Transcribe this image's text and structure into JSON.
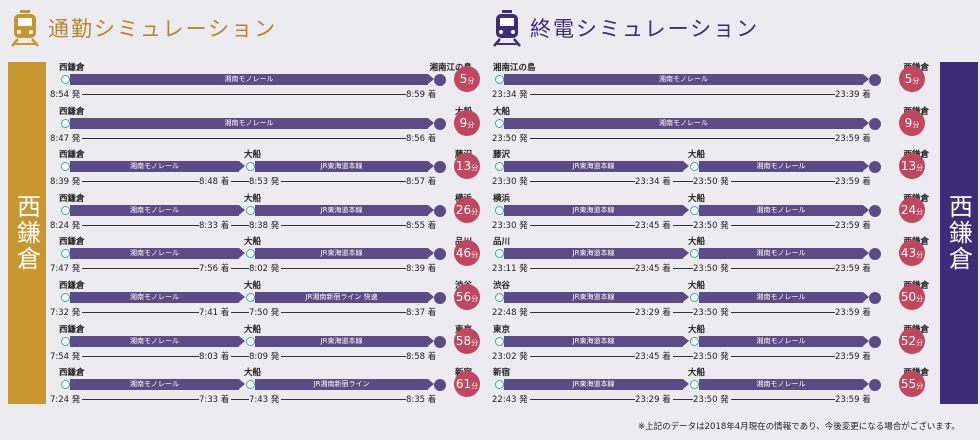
{
  "commute": {
    "title": "通勤シミュレーション",
    "side_label": "西鎌倉",
    "routes": [
      {
        "stations": [
          "西鎌倉",
          "湘南江の島"
        ],
        "lines": [
          "湘南モノレール"
        ],
        "dep": "8:54 発",
        "transfer": [],
        "arr": "8:59 着",
        "minutes": "5",
        "unit": "分"
      },
      {
        "stations": [
          "西鎌倉",
          "大船"
        ],
        "lines": [
          "湘南モノレール"
        ],
        "dep": "8:47 発",
        "transfer": [],
        "arr": "8:56 着",
        "minutes": "9",
        "unit": "分"
      },
      {
        "stations": [
          "西鎌倉",
          "大船",
          "藤沢"
        ],
        "lines": [
          "湘南モノレール",
          "JR東海道本線"
        ],
        "dep": "8:39 発",
        "transfer": [
          "8:48 着",
          "8:53 発"
        ],
        "arr": "8:57 着",
        "minutes": "13",
        "unit": "分"
      },
      {
        "stations": [
          "西鎌倉",
          "大船",
          "横浜"
        ],
        "lines": [
          "湘南モノレール",
          "JR東海道本線"
        ],
        "dep": "8:24 発",
        "transfer": [
          "8:33 着",
          "8:38 発"
        ],
        "arr": "8:55 着",
        "minutes": "26",
        "unit": "分"
      },
      {
        "stations": [
          "西鎌倉",
          "大船",
          "品川"
        ],
        "lines": [
          "湘南モノレール",
          "JR東海道本線"
        ],
        "dep": "7:47 発",
        "transfer": [
          "7:56 着",
          "8:02 発"
        ],
        "arr": "8:39 着",
        "minutes": "46",
        "unit": "分"
      },
      {
        "stations": [
          "西鎌倉",
          "大船",
          "渋谷"
        ],
        "lines": [
          "湘南モノレール",
          "JR湘南新宿ライン 快速"
        ],
        "dep": "7:32 発",
        "transfer": [
          "7:41 着",
          "7:50 発"
        ],
        "arr": "8:37 着",
        "minutes": "56",
        "unit": "分"
      },
      {
        "stations": [
          "西鎌倉",
          "大船",
          "東京"
        ],
        "lines": [
          "湘南モノレール",
          "JR東海道本線"
        ],
        "dep": "7:54 発",
        "transfer": [
          "8:03 着",
          "8:09 発"
        ],
        "arr": "8:58 着",
        "minutes": "58",
        "unit": "分"
      },
      {
        "stations": [
          "西鎌倉",
          "大船",
          "新宿"
        ],
        "lines": [
          "湘南モノレール",
          "JR湘南新宿ライン"
        ],
        "dep": "7:24 発",
        "transfer": [
          "7:33 着",
          "7:43 発"
        ],
        "arr": "8:35 着",
        "minutes": "61",
        "unit": "分"
      }
    ]
  },
  "last_train": {
    "title": "終電シミュレーション",
    "side_label": "西鎌倉",
    "routes": [
      {
        "stations": [
          "湘南江の島",
          "西鎌倉"
        ],
        "lines": [
          "湘南モノレール"
        ],
        "dep": "23:34 発",
        "transfer": [],
        "arr": "23:39 着",
        "minutes": "5",
        "unit": "分"
      },
      {
        "stations": [
          "大船",
          "西鎌倉"
        ],
        "lines": [
          "湘南モノレール"
        ],
        "dep": "23:50 発",
        "transfer": [],
        "arr": "23:59 着",
        "minutes": "9",
        "unit": "分"
      },
      {
        "stations": [
          "藤沢",
          "大船",
          "西鎌倉"
        ],
        "lines": [
          "JR東海道本線",
          "湘南モノレール"
        ],
        "dep": "23:30 発",
        "transfer": [
          "23:34 着",
          "23:50 発"
        ],
        "arr": "23:59 着",
        "minutes": "13",
        "unit": "分"
      },
      {
        "stations": [
          "横浜",
          "大船",
          "西鎌倉"
        ],
        "lines": [
          "JR東海道本線",
          "湘南モノレール"
        ],
        "dep": "23:30 発",
        "transfer": [
          "23:45 着",
          "23:50 発"
        ],
        "arr": "23:59 着",
        "minutes": "24",
        "unit": "分"
      },
      {
        "stations": [
          "品川",
          "大船",
          "西鎌倉"
        ],
        "lines": [
          "JR東海道本線",
          "湘南モノレール"
        ],
        "dep": "23:11 発",
        "transfer": [
          "23:45 着",
          "23:50 発"
        ],
        "arr": "23:59 着",
        "minutes": "43",
        "unit": "分"
      },
      {
        "stations": [
          "渋谷",
          "大船",
          "西鎌倉"
        ],
        "lines": [
          "JR東海道本線",
          "湘南モノレール"
        ],
        "dep": "22:48 発",
        "transfer": [
          "23:29 着",
          "23:50 発"
        ],
        "arr": "23:59 着",
        "minutes": "50",
        "unit": "分"
      },
      {
        "stations": [
          "東京",
          "大船",
          "西鎌倉"
        ],
        "lines": [
          "JR東海道本線",
          "湘南モノレール"
        ],
        "dep": "23:02 発",
        "transfer": [
          "23:45 着",
          "23:50 発"
        ],
        "arr": "23:59 着",
        "minutes": "52",
        "unit": "分"
      },
      {
        "stations": [
          "新宿",
          "大船",
          "西鎌倉"
        ],
        "lines": [
          "JR東海道本線",
          "湘南モノレール"
        ],
        "dep": "22:43 発",
        "transfer": [
          "23:29 着",
          "23:50 発"
        ],
        "arr": "23:59 着",
        "minutes": "55",
        "unit": "分"
      }
    ]
  },
  "note": "※上記のデータは2018年4月現在の情報であり、今後変更になる場合がございます。",
  "colors": {
    "commute_accent": "#c7962f",
    "last_accent": "#3d2c78",
    "line_bar": "#5b4b86",
    "badge": "#c0475f",
    "station_ring": "#3ba8a0"
  }
}
